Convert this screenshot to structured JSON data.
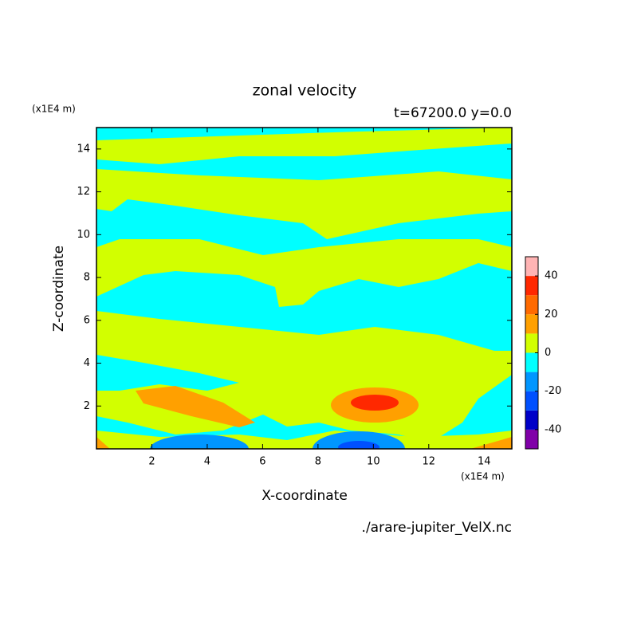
{
  "chart_data": {
    "type": "contour",
    "title": "zonal velocity",
    "subtitle": "t=67200.0 y=0.0",
    "x_label": "X-coordinate",
    "y_label": "Z-coordinate",
    "x_unit": "(x1E4 m)",
    "y_unit": "(x1E4 m)",
    "footnote": "./arare-jupiter_VelX.nc",
    "xlim": [
      0,
      15
    ],
    "xticks": [
      2,
      4,
      6,
      8,
      10,
      12,
      14
    ],
    "ylim": [
      0,
      15
    ],
    "yticks": [
      2,
      4,
      6,
      8,
      10,
      12,
      14
    ],
    "levels": [
      -50,
      -40,
      -30,
      -20,
      -10,
      0,
      10,
      20,
      30,
      40,
      50
    ],
    "colors": [
      "#8000a8",
      "#0000c8",
      "#0050ff",
      "#0096ff",
      "#00ffff",
      "#d2ff00",
      "#ffa000",
      "#ff6a00",
      "#ff2800",
      "#ffb4b4"
    ],
    "colorbar_ticks": [
      -40,
      -20,
      0,
      20,
      40
    ]
  }
}
